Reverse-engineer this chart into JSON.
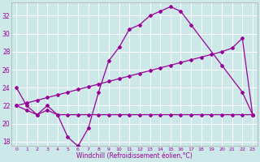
{
  "xlabel": "Windchill (Refroidissement éolien,°C)",
  "background_color": "#cce8e8",
  "line_color": "#990099",
  "xlim": [
    -0.5,
    23.5
  ],
  "ylim": [
    17.5,
    33.5
  ],
  "yticks": [
    18,
    20,
    22,
    24,
    26,
    28,
    30,
    32
  ],
  "xticks": [
    0,
    1,
    2,
    3,
    4,
    5,
    6,
    7,
    8,
    9,
    10,
    11,
    12,
    13,
    14,
    15,
    16,
    17,
    18,
    19,
    20,
    21,
    22,
    23
  ],
  "x_main": [
    0,
    1,
    2,
    3,
    4,
    5,
    6,
    7,
    8,
    9,
    10,
    11,
    12,
    13,
    14,
    15,
    16,
    17,
    20,
    22,
    23
  ],
  "y_main": [
    24,
    22,
    21,
    22,
    21,
    18.5,
    17.5,
    19.5,
    23.5,
    27,
    28.5,
    30.5,
    31,
    32,
    32.5,
    33,
    32.5,
    31,
    26.5,
    23.5,
    21
  ],
  "x_rise": [
    0,
    1,
    2,
    3,
    4,
    5,
    6,
    7,
    8,
    9,
    10,
    11,
    12,
    13,
    14,
    15,
    16,
    17,
    18,
    19,
    20,
    21,
    22,
    23
  ],
  "y_rise": [
    22,
    22.3,
    22.6,
    22.9,
    23.2,
    23.5,
    23.8,
    24.1,
    24.4,
    24.7,
    25.0,
    25.3,
    25.6,
    25.9,
    26.2,
    26.5,
    26.8,
    27.1,
    27.4,
    27.7,
    28.0,
    28.4,
    29.5,
    21
  ],
  "x_flat": [
    0,
    1,
    2,
    3,
    4,
    5,
    6,
    7,
    8,
    9,
    10,
    11,
    12,
    13,
    14,
    15,
    16,
    17,
    18,
    19,
    20,
    21,
    22,
    23
  ],
  "y_flat": [
    22,
    21.5,
    21,
    21.5,
    21,
    21,
    21,
    21,
    21,
    21,
    21,
    21,
    21,
    21,
    21,
    21,
    21,
    21,
    21,
    21,
    21,
    21,
    21,
    21
  ]
}
